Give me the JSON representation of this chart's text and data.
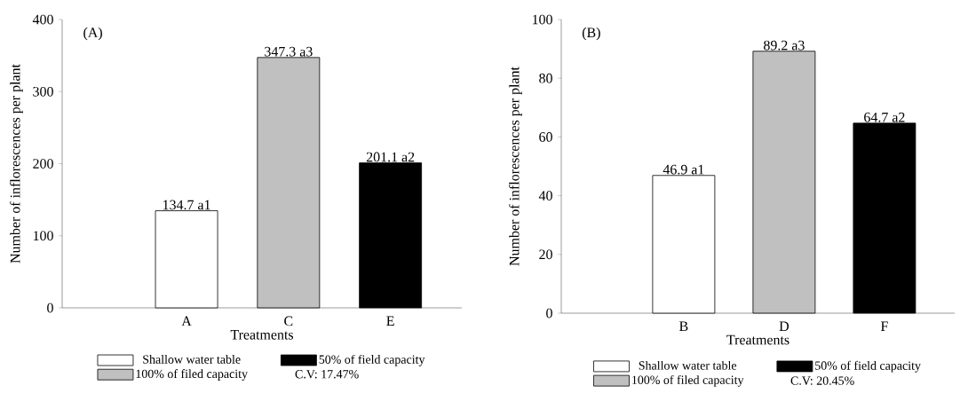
{
  "chart_data": [
    {
      "type": "bar",
      "title": "(A)",
      "xlabel": "Treatments",
      "ylabel": "Number of inflorescences per plant",
      "categories": [
        "A",
        "C",
        "E"
      ],
      "series": [
        {
          "name": "Shallow water table",
          "color": "#ffffff",
          "values": [
            134.7,
            null,
            null
          ],
          "value_labels": [
            "134.7 a1",
            null,
            null
          ]
        },
        {
          "name": "100% of filed capacity",
          "color": "#c0c0c0",
          "values": [
            null,
            347.3,
            null
          ],
          "value_labels": [
            null,
            "347.3 a3",
            null
          ]
        },
        {
          "name": "50% of field capacity",
          "color": "#000000",
          "values": [
            null,
            null,
            201.1
          ],
          "value_labels": [
            null,
            null,
            "201.1 a2"
          ]
        }
      ],
      "ylim": [
        0,
        400
      ],
      "yticks": [
        0,
        100,
        200,
        300,
        400
      ],
      "legend": "bottom",
      "annotations": [
        "C.V: 17.47%"
      ]
    },
    {
      "type": "bar",
      "title": "(B)",
      "xlabel": "Treatments",
      "ylabel": "Number of inflorescences per plant",
      "categories": [
        "B",
        "D",
        "F"
      ],
      "series": [
        {
          "name": "Shallow water table",
          "color": "#ffffff",
          "values": [
            46.9,
            null,
            null
          ],
          "value_labels": [
            "46.9 a1",
            null,
            null
          ]
        },
        {
          "name": "100% of filed capacity",
          "color": "#c0c0c0",
          "values": [
            null,
            89.2,
            null
          ],
          "value_labels": [
            null,
            "89.2 a3",
            null
          ]
        },
        {
          "name": "50% of field capacity",
          "color": "#000000",
          "values": [
            null,
            null,
            64.7
          ],
          "value_labels": [
            null,
            null,
            "64.7 a2"
          ]
        }
      ],
      "ylim": [
        0,
        100
      ],
      "yticks": [
        0,
        20,
        40,
        60,
        80,
        100
      ],
      "legend": "bottom",
      "annotations": [
        "C.V: 20.45%"
      ]
    }
  ]
}
